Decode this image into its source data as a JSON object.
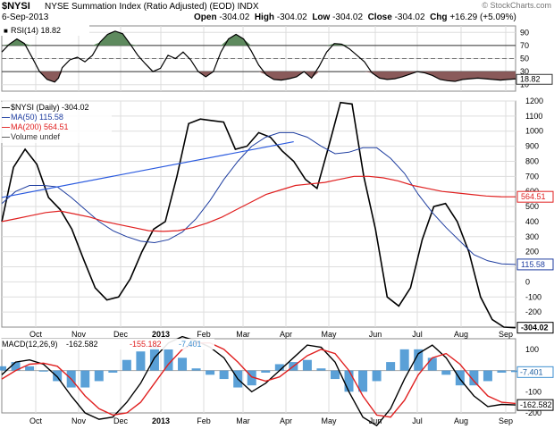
{
  "header": {
    "symbol": "$NYSI",
    "title": "NYSE Summation Index (Ratio Adjusted) (EOD)",
    "exchange": "INDX",
    "watermark": "© StockCharts.com",
    "date": "6-Sep-2013",
    "open_label": "Open",
    "open": "-304.02",
    "high_label": "High",
    "high": "-304.02",
    "low_label": "Low",
    "low": "-304.02",
    "close_label": "Close",
    "close": "-304.02",
    "chg_label": "Chg",
    "chg": "+16.29 (+5.09%)"
  },
  "colors": {
    "price": "#000000",
    "ma50": "#1f3ea0",
    "ma200": "#e02020",
    "trend": "#2a5adf",
    "rsi_over": "#5e8a5e",
    "rsi_under": "#8a5a5a",
    "histogram": "#3d8fd0",
    "signal": "#e02020",
    "grid": "#dddddd"
  },
  "chart_data": [
    {
      "type": "line",
      "panel": "rsi",
      "legend": "RSI(14) 18.82",
      "ylim": [
        0,
        100
      ],
      "yticks": [
        10,
        30,
        50,
        70,
        90
      ],
      "levels": [
        30,
        50,
        70
      ],
      "last_value": "18.82",
      "x": [
        0,
        4,
        8,
        12,
        16,
        20,
        24,
        28,
        30,
        32,
        36,
        40,
        44,
        48,
        52,
        56,
        60,
        64,
        68,
        72,
        76,
        80,
        84,
        88,
        92,
        96,
        100,
        104,
        108,
        112,
        116,
        120,
        124,
        128,
        132,
        136,
        140,
        144,
        148,
        152,
        156,
        160,
        164,
        168,
        172,
        176,
        180,
        184,
        188,
        192,
        196,
        200,
        204,
        208,
        212,
        216,
        220,
        224,
        228,
        232,
        236,
        240,
        244,
        248,
        252,
        256,
        260,
        264,
        268,
        272
      ],
      "values": [
        60,
        72,
        80,
        73,
        52,
        30,
        18,
        14,
        20,
        36,
        48,
        52,
        45,
        55,
        75,
        87,
        92,
        88,
        72,
        55,
        42,
        30,
        35,
        55,
        50,
        60,
        48,
        30,
        22,
        30,
        60,
        80,
        87,
        80,
        62,
        40,
        25,
        18,
        17,
        19,
        22,
        30,
        20,
        38,
        60,
        73,
        72,
        65,
        55,
        45,
        28,
        20,
        18,
        19,
        22,
        26,
        30,
        28,
        24,
        18,
        16,
        15,
        18,
        19,
        20,
        19,
        18,
        17,
        18,
        18.82
      ]
    },
    {
      "type": "line",
      "panel": "price",
      "legend": [
        "$NYSI (Daily) -304.02",
        "MA(50) 115.58",
        "MA(200) 564.51",
        "Volume undef"
      ],
      "ylim": [
        -300,
        1200
      ],
      "yticks": [
        -200,
        -100,
        0,
        100,
        200,
        300,
        400,
        500,
        600,
        700,
        800,
        900,
        1000,
        1100,
        1200
      ],
      "series": [
        {
          "name": "$NYSI (Daily)",
          "values": [
            400,
            760,
            880,
            780,
            560,
            480,
            350,
            150,
            -40,
            -120,
            -100,
            20,
            200,
            350,
            400,
            700,
            1050,
            1080,
            1070,
            1060,
            880,
            900,
            990,
            960,
            870,
            800,
            680,
            620,
            900,
            1190,
            1180,
            700,
            350,
            -100,
            -160,
            -40,
            280,
            500,
            520,
            400,
            200,
            -100,
            -250,
            -300,
            -304.02
          ]
        },
        {
          "name": "MA(50)",
          "values": [
            520,
            600,
            640,
            640,
            630,
            560,
            480,
            400,
            340,
            300,
            270,
            260,
            280,
            330,
            420,
            540,
            680,
            800,
            900,
            960,
            990,
            990,
            960,
            900,
            850,
            860,
            890,
            890,
            820,
            720,
            580,
            460,
            360,
            270,
            180,
            140,
            120,
            115.58
          ]
        },
        {
          "name": "MA(200)",
          "values": [
            400,
            420,
            440,
            460,
            470,
            450,
            430,
            400,
            380,
            360,
            340,
            335,
            340,
            360,
            390,
            430,
            480,
            530,
            580,
            610,
            640,
            650,
            660,
            680,
            700,
            700,
            690,
            670,
            640,
            620,
            600,
            590,
            580,
            570,
            565,
            564.51
          ]
        }
      ],
      "trendline": {
        "x": [
          0,
          25
        ],
        "values": [
          560,
          930
        ]
      },
      "last_values": {
        "price": "-304.02",
        "ma50": "115.58",
        "ma200": "564.51"
      }
    },
    {
      "type": "line",
      "panel": "macd",
      "legend": {
        "name": "MACD(12,26,9)",
        "macd": "-162.582",
        "signal": "-155.182",
        "hist": "-7.401"
      },
      "ylim": [
        -200,
        150
      ],
      "yticks": [
        -200,
        -100,
        0,
        100
      ],
      "last_values": {
        "hist": "-7.401",
        "macd": "-162.582"
      },
      "series": [
        {
          "name": "MACD",
          "values": [
            -20,
            40,
            50,
            30,
            -30,
            -120,
            -200,
            -230,
            -220,
            -150,
            -60,
            60,
            130,
            160,
            140,
            110,
            60,
            -40,
            -100,
            -60,
            0,
            60,
            120,
            110,
            40,
            -100,
            -220,
            -260,
            -180,
            -40,
            80,
            120,
            60,
            -40,
            -120,
            -170,
            -160,
            -162.582
          ]
        },
        {
          "name": "Signal",
          "values": [
            -40,
            0,
            30,
            35,
            20,
            -40,
            -120,
            -180,
            -210,
            -200,
            -150,
            -60,
            30,
            100,
            130,
            130,
            100,
            40,
            -30,
            -50,
            -30,
            20,
            70,
            100,
            80,
            0,
            -120,
            -210,
            -220,
            -140,
            -20,
            60,
            80,
            30,
            -50,
            -120,
            -150,
            -155.182
          ]
        },
        {
          "name": "Histogram",
          "values": [
            20,
            40,
            20,
            -5,
            -50,
            -80,
            -80,
            -50,
            -10,
            50,
            90,
            120,
            100,
            60,
            10,
            -20,
            -40,
            -80,
            -70,
            -10,
            30,
            40,
            50,
            10,
            -40,
            -100,
            -100,
            -50,
            40,
            100,
            100,
            60,
            -20,
            -70,
            -70,
            -50,
            -10,
            -7.401
          ]
        }
      ]
    }
  ],
  "months": [
    "Oct",
    "Nov",
    "Dec",
    "2013",
    "Feb",
    "Mar",
    "Apr",
    "May",
    "Jun",
    "Jul",
    "Aug",
    "Sep"
  ]
}
